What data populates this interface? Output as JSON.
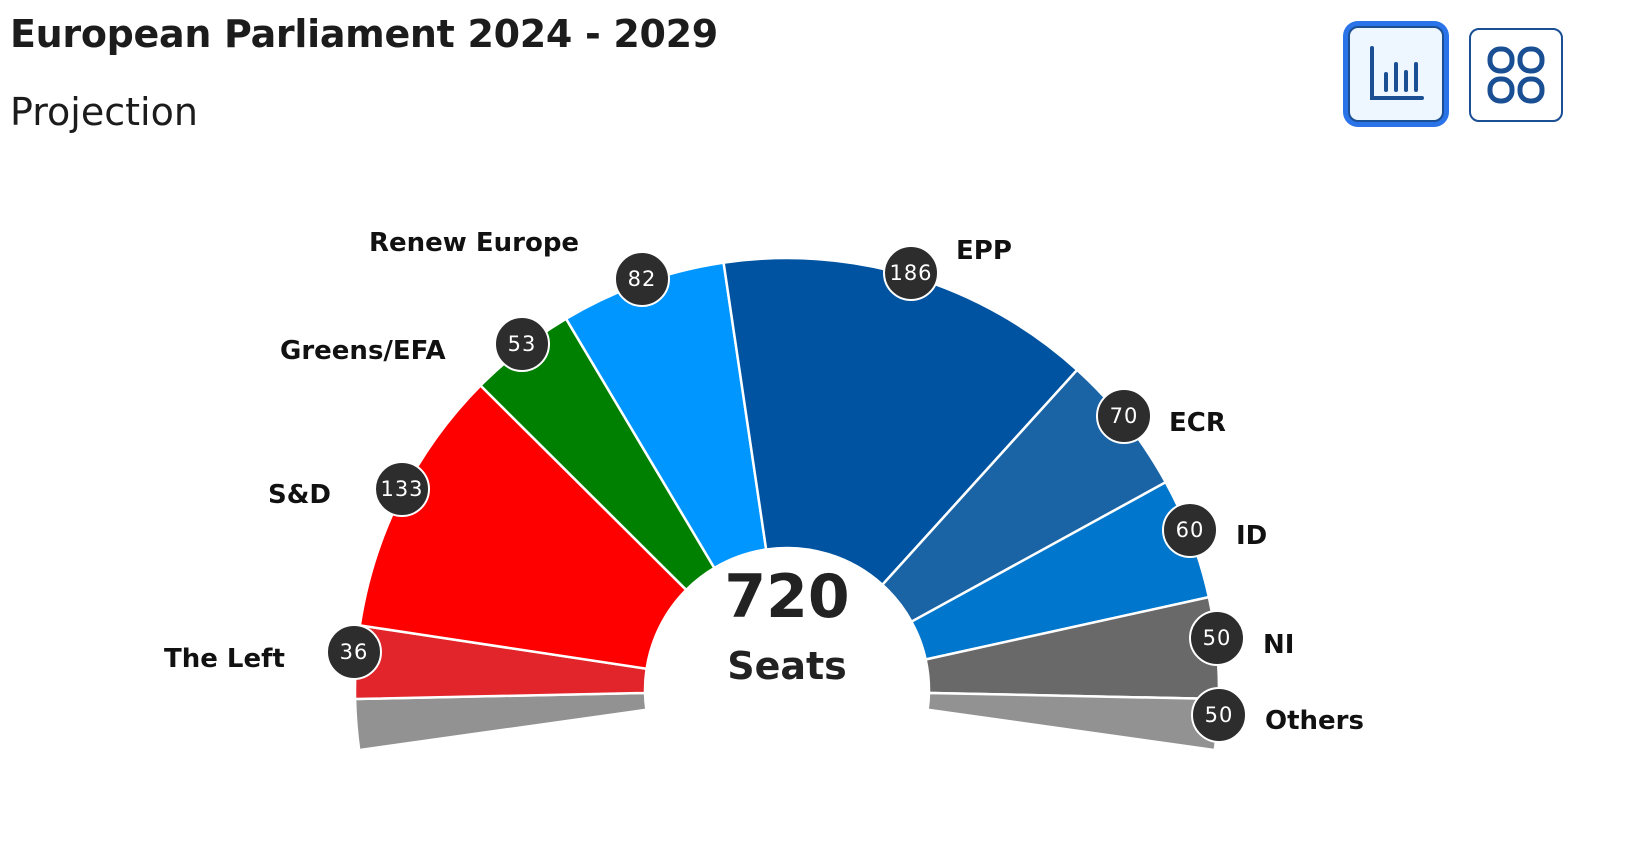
{
  "header": {
    "title": "European Parliament 2024 - 2029",
    "subtitle": "Projection"
  },
  "view_toggle": {
    "chart_view": {
      "icon": "bar-chart-icon",
      "active": true
    },
    "grid_view": {
      "icon": "grid-icon",
      "active": false
    }
  },
  "center": {
    "total": "720",
    "label": "Seats"
  },
  "parties": [
    {
      "name": "Others",
      "seats": "",
      "color": "#929292",
      "side": "left"
    },
    {
      "name": "The Left",
      "seats": "36",
      "color": "#e2252b"
    },
    {
      "name": "S&D",
      "seats": "133",
      "color": "#ff0000"
    },
    {
      "name": "Greens/EFA",
      "seats": "53",
      "color": "#008000"
    },
    {
      "name": "Renew Europe",
      "seats": "82",
      "color": "#0096ff"
    },
    {
      "name": "EPP",
      "seats": "186",
      "color": "#0053a0"
    },
    {
      "name": "ECR",
      "seats": "70",
      "color": "#1a64a6"
    },
    {
      "name": "ID",
      "seats": "60",
      "color": "#0077cc"
    },
    {
      "name": "NI",
      "seats": "50",
      "color": "#696969"
    },
    {
      "name": "Others",
      "seats": "50",
      "color": "#929292",
      "side": "right"
    }
  ],
  "chart_data": {
    "type": "pie",
    "subtype": "parliament-semicircle",
    "title": "European Parliament 2024 - 2029",
    "subtitle": "Projection",
    "total_seats": 720,
    "categories": [
      "The Left",
      "S&D",
      "Greens/EFA",
      "Renew Europe",
      "EPP",
      "ECR",
      "ID",
      "NI",
      "Others"
    ],
    "values": [
      36,
      133,
      53,
      82,
      186,
      70,
      60,
      50,
      50
    ],
    "colors": [
      "#e2252b",
      "#ff0000",
      "#008000",
      "#0096ff",
      "#0053a0",
      "#1a64a6",
      "#0077cc",
      "#696969",
      "#929292"
    ],
    "center_label": "720 Seats"
  }
}
